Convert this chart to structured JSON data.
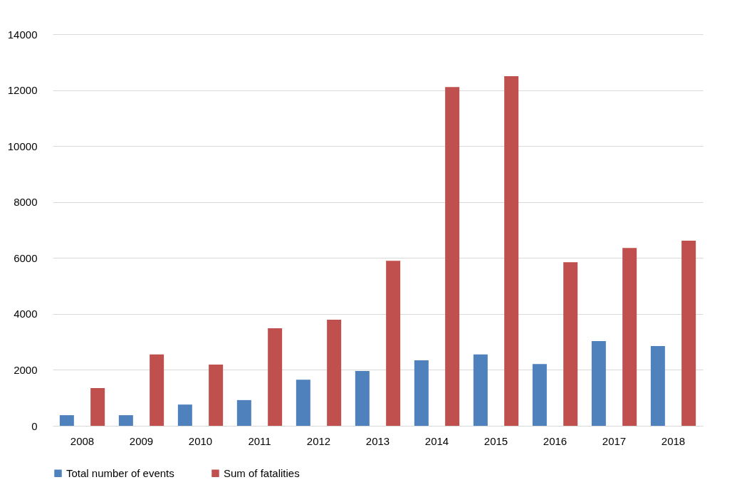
{
  "chart_data": {
    "type": "bar",
    "categories": [
      "2008",
      "2009",
      "2010",
      "2011",
      "2012",
      "2013",
      "2014",
      "2015",
      "2016",
      "2017",
      "2018"
    ],
    "series": [
      {
        "name": "Total number of events",
        "color": "#4f81bd",
        "values": [
          380,
          380,
          760,
          920,
          1650,
          1960,
          2340,
          2550,
          2210,
          3030,
          2850
        ]
      },
      {
        "name": "Sum of fatalities",
        "color": "#c0504d",
        "values": [
          1350,
          2550,
          2190,
          3490,
          3790,
          5900,
          12110,
          12500,
          5850,
          6360,
          6620
        ]
      }
    ],
    "ylim": [
      0,
      14000
    ],
    "yticks": [
      0,
      2000,
      4000,
      6000,
      8000,
      10000,
      12000,
      14000
    ],
    "grid": "y",
    "legend": "bottom"
  }
}
